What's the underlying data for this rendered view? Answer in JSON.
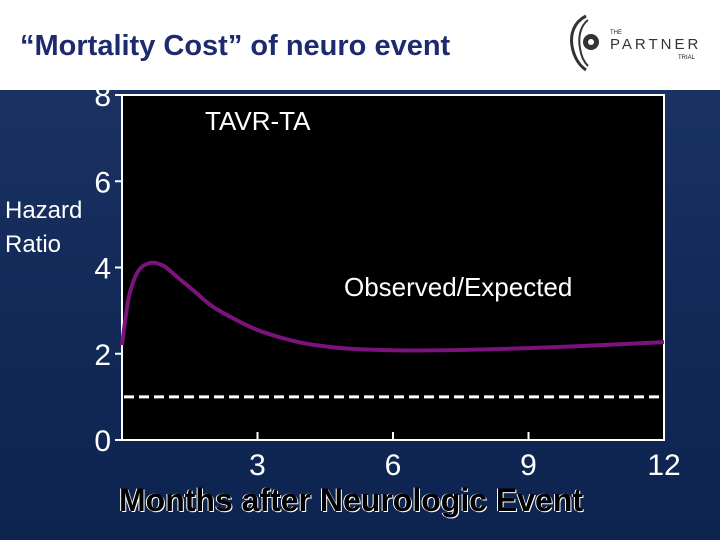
{
  "slide": {
    "title": "“Mortality Cost” of neuro event"
  },
  "logo": {
    "the": "THE",
    "partner": "PARTNER",
    "trial": "TRIAL"
  },
  "colors": {
    "curve": "#7a137a",
    "plot_background": "#000000",
    "axis": "#ffffff",
    "reference_line": "#ffffff"
  },
  "chart_data": {
    "type": "line",
    "title": "",
    "xlabel": "Months after Neurologic Event",
    "ylabel": "Hazard\nRatio",
    "xlim": [
      0,
      12
    ],
    "ylim": [
      0,
      8
    ],
    "x_ticks": [
      "3",
      "6",
      "9",
      "12"
    ],
    "y_ticks": [
      "0",
      "2",
      "4",
      "6",
      "8"
    ],
    "grid": false,
    "annotations": [
      "TAVR-TA",
      "Observed/Expected"
    ],
    "reference_line": {
      "y": 1,
      "style": "dashed"
    },
    "series": [
      {
        "name": "Observed/Expected",
        "x": [
          0,
          0.15,
          0.35,
          0.6,
          0.9,
          1.2,
          1.6,
          2.0,
          2.5,
          3.0,
          3.5,
          4.0,
          4.5,
          5.0,
          6.0,
          7.0,
          8.0,
          9.0,
          10.0,
          11.0,
          12.0
        ],
        "y": [
          2.2,
          3.3,
          3.9,
          4.1,
          4.05,
          3.8,
          3.45,
          3.1,
          2.8,
          2.55,
          2.38,
          2.25,
          2.17,
          2.12,
          2.08,
          2.08,
          2.1,
          2.13,
          2.17,
          2.22,
          2.27
        ]
      }
    ]
  }
}
